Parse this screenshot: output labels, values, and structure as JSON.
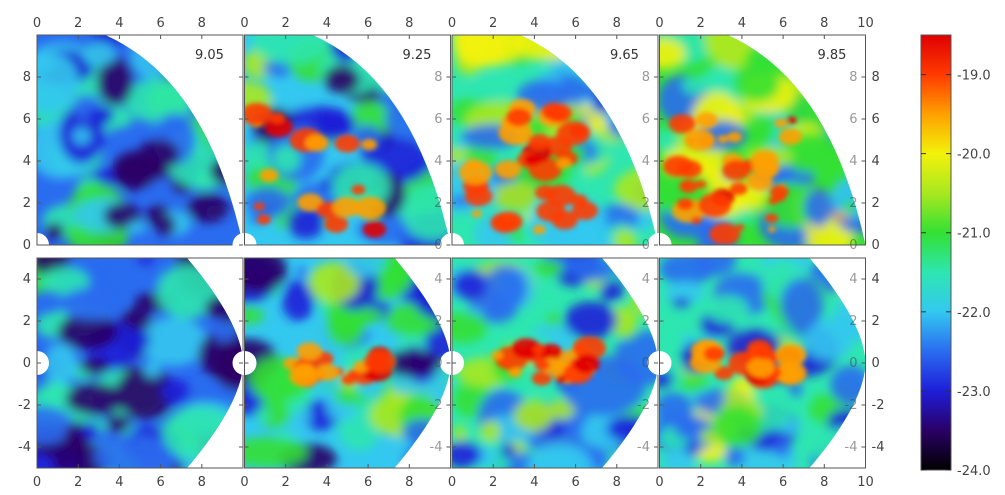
{
  "figure": {
    "rows": [
      {
        "name": "top",
        "ylim": [
          0,
          10
        ],
        "yticks": [
          "0",
          "2",
          "4",
          "6",
          "8"
        ],
        "panels": [
          {
            "time": "9.05",
            "intensity": 0.15
          },
          {
            "time": "9.25",
            "intensity": 0.45
          },
          {
            "time": "9.65",
            "intensity": 0.85
          },
          {
            "time": "9.85",
            "intensity": 0.9
          }
        ]
      },
      {
        "name": "bottom",
        "ylim": [
          -5,
          5
        ],
        "yticks": [
          "-4",
          "-2",
          "0",
          "2",
          "4"
        ],
        "panels": [
          {
            "time": "",
            "intensity": 0.1
          },
          {
            "time": "",
            "intensity": 0.45
          },
          {
            "time": "",
            "intensity": 0.6
          },
          {
            "time": "",
            "intensity": 0.65
          }
        ]
      }
    ],
    "xlim": [
      0,
      10
    ],
    "xticks": [
      "0",
      "2",
      "4",
      "6",
      "8"
    ],
    "xtick_last": "10",
    "colorbar": {
      "min": -24.0,
      "max": -18.5,
      "ticks": [
        "-19.0",
        "-20.0",
        "-21.0",
        "-22.0",
        "-23.0",
        "-24.0"
      ],
      "colors": [
        "#000000",
        "#2a0066",
        "#1e1ed8",
        "#2a6cf0",
        "#33c8f0",
        "#2ee6b0",
        "#33e033",
        "#a8e820",
        "#f2f20a",
        "#ffa000",
        "#ff3a00",
        "#e00000"
      ]
    }
  }
}
